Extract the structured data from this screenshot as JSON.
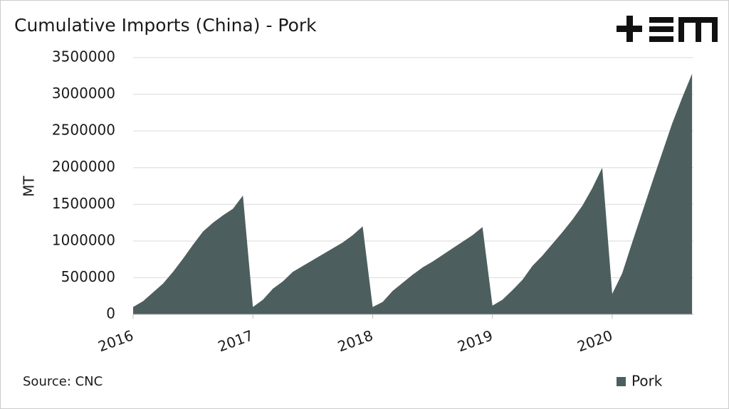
{
  "chart_data": {
    "type": "area",
    "title": "Cumulative Imports (China) - Pork",
    "ylabel": "MT",
    "source": "Source: CNC",
    "legend": "bottom-right",
    "grid": true,
    "categories": [
      "2016",
      null,
      null,
      null,
      null,
      null,
      null,
      null,
      null,
      null,
      null,
      null,
      "2017",
      null,
      null,
      null,
      null,
      null,
      null,
      null,
      null,
      null,
      null,
      null,
      "2018",
      null,
      null,
      null,
      null,
      null,
      null,
      null,
      null,
      null,
      null,
      null,
      "2019",
      null,
      null,
      null,
      null,
      null,
      null,
      null,
      null,
      null,
      null,
      null,
      "2020",
      null,
      null,
      null,
      null,
      null,
      null,
      null,
      null
    ],
    "series": [
      {
        "name": "Pork",
        "color": "#4d5e5e",
        "values": [
          100000,
          180000,
          300000,
          420000,
          580000,
          760000,
          950000,
          1130000,
          1250000,
          1350000,
          1440000,
          1620000,
          100000,
          200000,
          350000,
          450000,
          580000,
          660000,
          740000,
          820000,
          900000,
          980000,
          1080000,
          1200000,
          100000,
          170000,
          320000,
          430000,
          540000,
          640000,
          720000,
          810000,
          900000,
          990000,
          1080000,
          1190000,
          120000,
          200000,
          330000,
          470000,
          660000,
          800000,
          960000,
          1120000,
          1290000,
          1480000,
          1720000,
          2000000,
          280000,
          560000,
          980000,
          1390000,
          1800000,
          2200000,
          2600000,
          2950000,
          3280000
        ]
      }
    ],
    "ylim": [
      0,
      3500000
    ],
    "yticks": [
      0,
      500000,
      1000000,
      1500000,
      2000000,
      2500000,
      3000000,
      3500000
    ]
  }
}
